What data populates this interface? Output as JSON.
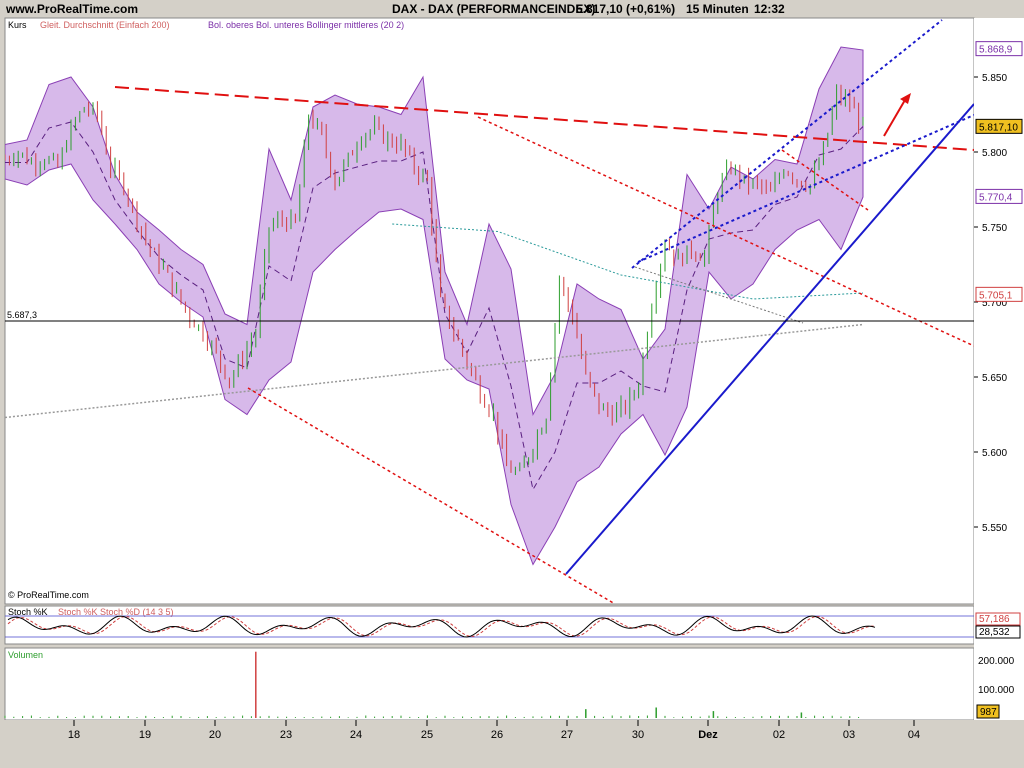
{
  "header": {
    "site": "www.ProRealTime.com",
    "instrument": "DAX - DAX (PERFORMANCEINDEX)",
    "price": "5.817,10 (+0,61%)",
    "timeframe": "15 Minuten",
    "time": "12:32"
  },
  "legend": {
    "price_label": "Kurs",
    "ma_label": "Gleit. Durchschnitt (Einfach 200)",
    "boll_label": "Bol. oberes Bol. unteres Bollinger mittleres (20 2)",
    "copyright": "© ProRealTime.com"
  },
  "colors": {
    "band_fill": "#d7b9ea",
    "band_line": "#8a3fb5",
    "up_candle": "#2e9e2e",
    "down_candle": "#d04040",
    "trend_red": "#e01010",
    "trend_blue": "#1a1acc",
    "ma200": "#999999",
    "teal": "#2a9a9a"
  },
  "chart_data": [
    {
      "type": "line",
      "title": "DAX - DAX (PERFORMANCEINDEX)",
      "subtitle": "15 Minuten",
      "ylim": [
        5510,
        5880
      ],
      "y_ticks": [
        "5.850",
        "5.800",
        "5.750",
        "5.700",
        "5.650",
        "5.600",
        "5.550"
      ],
      "x_ticks": [
        "18",
        "19",
        "20",
        "23",
        "24",
        "25",
        "26",
        "27",
        "30",
        "Dez",
        "02",
        "03",
        "04"
      ],
      "grid": false,
      "price_tags": [
        {
          "label": "5.868,9",
          "value": 5868.9,
          "color": "#7b2fa8"
        },
        {
          "label": "5.817,10",
          "value": 5817.1,
          "color": "#000000"
        },
        {
          "label": "5.770,4",
          "value": 5770.4,
          "color": "#7b2fa8"
        },
        {
          "label": "5.705,1",
          "value": 5705.1,
          "color": "#d04040"
        }
      ],
      "horizontal_line": {
        "label": "5.687,3",
        "value": 5687.3
      },
      "series": [
        {
          "name": "Kurs",
          "x": [
            0,
            3,
            6,
            9,
            12,
            15,
            18,
            21,
            24,
            27,
            30,
            33,
            36,
            39,
            42,
            45,
            48,
            51,
            54,
            57,
            60,
            63,
            66,
            69,
            72,
            75,
            78,
            81,
            84,
            87,
            90,
            93,
            96,
            99,
            102,
            105,
            108,
            111,
            114,
            117,
            120,
            123,
            126,
            129,
            132,
            135,
            138,
            141,
            144,
            147,
            150,
            153,
            156,
            159,
            162,
            165,
            168,
            171,
            174,
            177,
            180,
            183,
            186,
            189,
            192,
            195
          ],
          "values": [
            5795,
            5800,
            5793,
            5796,
            5790,
            5815,
            5830,
            5825,
            5790,
            5778,
            5755,
            5735,
            5722,
            5705,
            5690,
            5680,
            5665,
            5648,
            5663,
            5680,
            5750,
            5755,
            5752,
            5825,
            5810,
            5780,
            5795,
            5812,
            5815,
            5808,
            5805,
            5790,
            5780,
            5700,
            5680,
            5660,
            5640,
            5625,
            5590,
            5585,
            5605,
            5625,
            5715,
            5690,
            5650,
            5630,
            5625,
            5630,
            5645,
            5700,
            5740,
            5728,
            5735,
            5730,
            5775,
            5790,
            5780,
            5778,
            5772,
            5790,
            5782,
            5778,
            5800,
            5838,
            5832,
            5817
          ]
        },
        {
          "name": "Bol. oberes",
          "x": [
            0,
            5,
            10,
            15,
            20,
            25,
            30,
            35,
            40,
            45,
            50,
            55,
            60,
            65,
            70,
            75,
            80,
            85,
            90,
            95,
            100,
            105,
            110,
            115,
            120,
            125,
            130,
            135,
            140,
            145,
            150,
            155,
            160,
            165,
            170,
            175,
            180,
            185,
            190,
            195
          ],
          "values": [
            5805,
            5808,
            5845,
            5850,
            5830,
            5785,
            5760,
            5748,
            5735,
            5725,
            5692,
            5685,
            5802,
            5768,
            5830,
            5838,
            5832,
            5830,
            5825,
            5850,
            5720,
            5685,
            5752,
            5722,
            5625,
            5652,
            5712,
            5702,
            5695,
            5662,
            5682,
            5785,
            5762,
            5790,
            5782,
            5795,
            5792,
            5842,
            5870,
            5868
          ]
        },
        {
          "name": "Bol. unteres",
          "x": [
            0,
            5,
            10,
            15,
            20,
            25,
            30,
            35,
            40,
            45,
            50,
            55,
            60,
            65,
            70,
            75,
            80,
            85,
            90,
            95,
            100,
            105,
            110,
            115,
            120,
            125,
            130,
            135,
            140,
            145,
            150,
            155,
            160,
            165,
            170,
            175,
            180,
            185,
            190,
            195
          ],
          "values": [
            5782,
            5778,
            5788,
            5792,
            5768,
            5752,
            5735,
            5712,
            5700,
            5690,
            5635,
            5625,
            5648,
            5660,
            5720,
            5735,
            5748,
            5760,
            5762,
            5755,
            5662,
            5648,
            5642,
            5565,
            5525,
            5550,
            5580,
            5590,
            5612,
            5625,
            5598,
            5630,
            5720,
            5702,
            5712,
            5735,
            5748,
            5755,
            5735,
            5770
          ]
        },
        {
          "name": "Bollinger mittleres",
          "x": [
            0,
            5,
            10,
            15,
            20,
            25,
            30,
            35,
            40,
            45,
            50,
            55,
            60,
            65,
            70,
            75,
            80,
            85,
            90,
            95,
            100,
            105,
            110,
            115,
            120,
            125,
            130,
            135,
            140,
            145,
            150,
            155,
            160,
            165,
            170,
            175,
            180,
            185,
            190,
            195
          ],
          "values": [
            5793,
            5793,
            5816,
            5820,
            5800,
            5768,
            5748,
            5730,
            5718,
            5708,
            5662,
            5656,
            5724,
            5714,
            5776,
            5786,
            5790,
            5794,
            5794,
            5800,
            5692,
            5666,
            5696,
            5644,
            5575,
            5600,
            5646,
            5646,
            5654,
            5644,
            5640,
            5708,
            5742,
            5746,
            5748,
            5765,
            5770,
            5798,
            5802,
            5817
          ]
        },
        {
          "name": "Gleit. Durchschnitt (Einfach 200)",
          "x": [
            0,
            195
          ],
          "values": [
            5623,
            5685
          ]
        }
      ]
    },
    {
      "type": "line",
      "title": "Stoch %K Stoch %D (14 3 5)",
      "ylim": [
        0,
        100
      ],
      "tags": [
        "57,186",
        "28,532"
      ],
      "series": [
        {
          "name": "Stoch %K"
        },
        {
          "name": "Stoch %D"
        }
      ]
    },
    {
      "type": "bar",
      "title": "Volumen",
      "y_ticks": [
        "200.000",
        "100.000"
      ],
      "tag": "987",
      "spikes": [
        {
          "x": 57,
          "value": 240000
        },
        {
          "x": 132,
          "value": 32000
        },
        {
          "x": 148,
          "value": 38000
        },
        {
          "x": 161,
          "value": 25000
        },
        {
          "x": 181,
          "value": 20000
        }
      ]
    }
  ]
}
